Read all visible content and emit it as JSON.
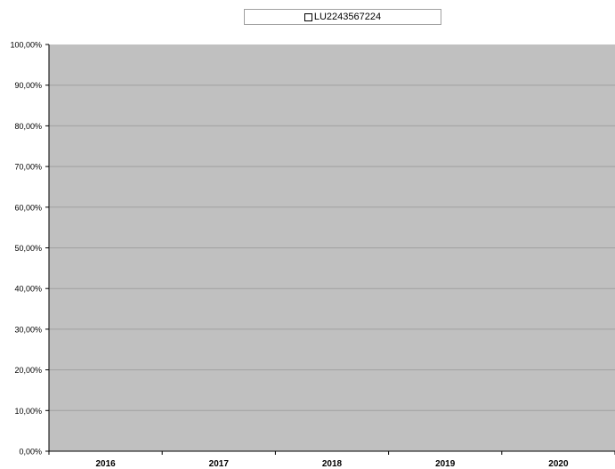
{
  "chart_data": {
    "type": "bar",
    "categories": [
      "2016",
      "2017",
      "2018",
      "2019",
      "2020"
    ],
    "series": [
      {
        "name": "LU2243567224",
        "values": [
          null,
          null,
          null,
          null,
          null
        ]
      }
    ],
    "yticks": [
      "0,00%",
      "10,00%",
      "20,00%",
      "30,00%",
      "40,00%",
      "50,00%",
      "60,00%",
      "70,00%",
      "80,00%",
      "90,00%",
      "100,00%"
    ],
    "ylim": [
      0,
      100
    ],
    "grid": true,
    "legend_position": "top-center",
    "colors": {
      "plot_background": "#c0c0c0",
      "gridline": "#a0a0a0",
      "series_fill": "#ffffff"
    }
  }
}
